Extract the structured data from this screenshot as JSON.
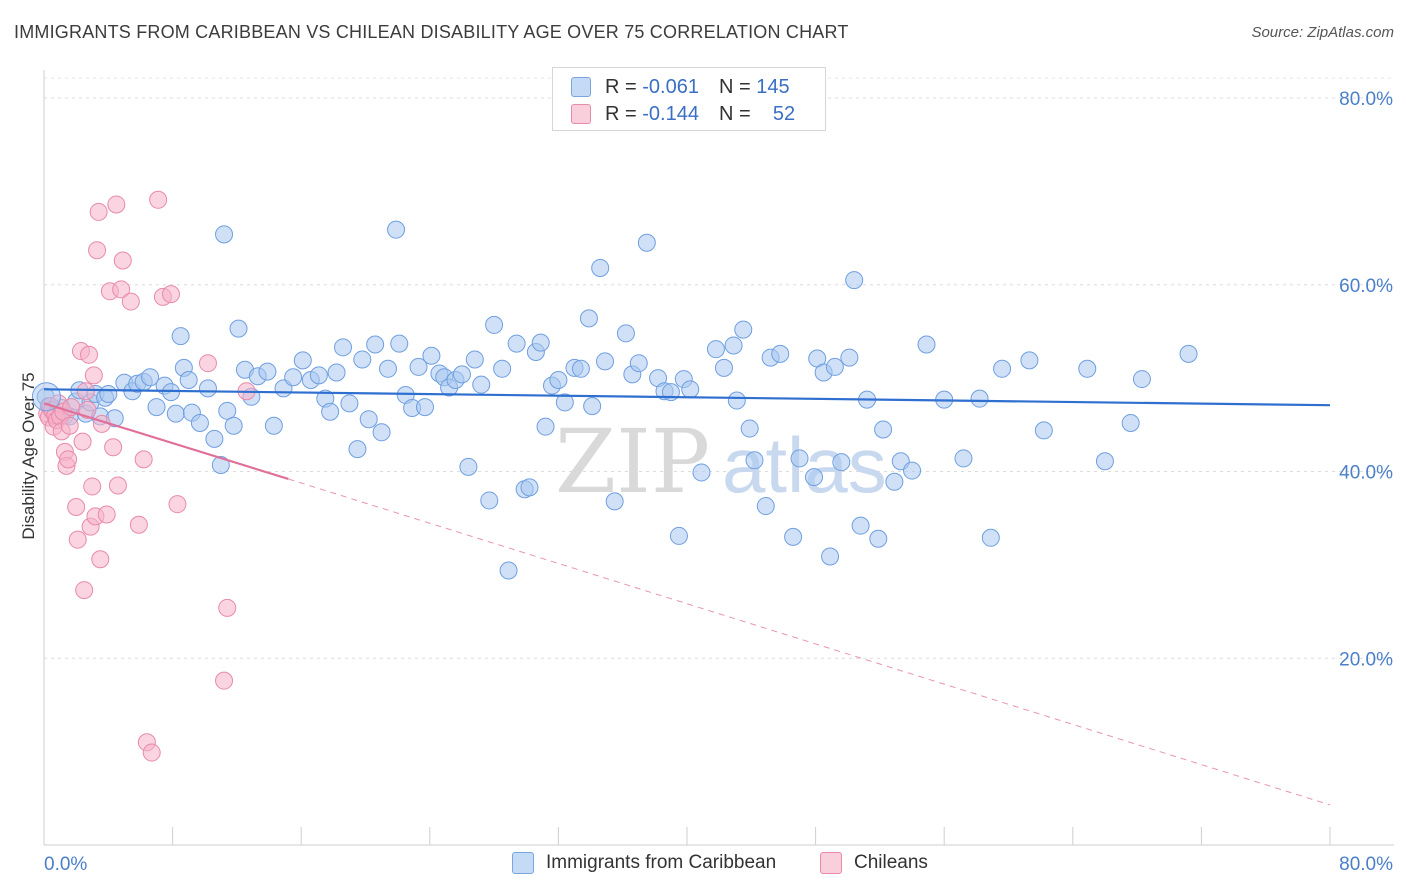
{
  "header": {
    "title": "IMMIGRANTS FROM CARIBBEAN VS CHILEAN DISABILITY AGE OVER 75 CORRELATION CHART",
    "source": "Source: ZipAtlas.com"
  },
  "legend": {
    "rows": [
      {
        "r_label": "R =",
        "r_value": "-0.061",
        "n_label": "N =",
        "n_value": "145",
        "color": "#a9c8f0"
      },
      {
        "r_label": "R =",
        "r_value": "-0.144",
        "n_label": "N =",
        "n_value": "52",
        "color": "#f5b3c8"
      }
    ]
  },
  "bottom_legend": {
    "items": [
      {
        "label": "Immigrants from Caribbean",
        "color": "#a9c8f0"
      },
      {
        "label": "Chileans",
        "color": "#f5b3c8"
      }
    ]
  },
  "watermark": {
    "zip": "ZIP",
    "atlas": "atlas"
  },
  "chart_data": {
    "type": "scatter",
    "title": "IMMIGRANTS FROM CARIBBEAN VS CHILEAN DISABILITY AGE OVER 75 CORRELATION CHART",
    "xlabel": "",
    "ylabel": "Disability Age Over 75",
    "xlim": [
      0,
      80
    ],
    "ylim": [
      0,
      83
    ],
    "x_tick_labels": [
      "0.0%",
      "80.0%"
    ],
    "y_ticks": [
      20,
      40,
      60,
      80
    ],
    "y_tick_labels": [
      "20.0%",
      "40.0%",
      "60.0%",
      "80.0%"
    ],
    "grid": "horizontal dashed",
    "legend_position": "top-center",
    "series": [
      {
        "name": "Immigrants from Caribbean",
        "color": "#a9c8f0",
        "stroke": "#6f9fe0",
        "trend": {
          "x": [
            0,
            80
          ],
          "y": [
            48.8,
            47.1
          ],
          "color": "#2f6fd0"
        },
        "points": [
          [
            0.1,
            48.0
          ],
          [
            0.3,
            47.0
          ],
          [
            0.5,
            46.5
          ],
          [
            0.8,
            46.2
          ],
          [
            1.1,
            46.8
          ],
          [
            1.3,
            46.0
          ],
          [
            1.6,
            45.9
          ],
          [
            2.0,
            47.5
          ],
          [
            2.2,
            48.7
          ],
          [
            2.6,
            46.2
          ],
          [
            2.9,
            47.4
          ],
          [
            3.2,
            48.3
          ],
          [
            3.5,
            45.9
          ],
          [
            3.8,
            47.9
          ],
          [
            4.0,
            48.3
          ],
          [
            4.4,
            45.7
          ],
          [
            5.0,
            49.5
          ],
          [
            5.5,
            48.6
          ],
          [
            5.8,
            49.4
          ],
          [
            6.2,
            49.6
          ],
          [
            6.6,
            50.1
          ],
          [
            7.0,
            46.9
          ],
          [
            7.5,
            49.2
          ],
          [
            7.9,
            48.5
          ],
          [
            8.2,
            46.2
          ],
          [
            8.5,
            54.5
          ],
          [
            8.7,
            51.1
          ],
          [
            9.0,
            49.8
          ],
          [
            9.2,
            46.3
          ],
          [
            9.7,
            45.2
          ],
          [
            10.2,
            48.9
          ],
          [
            10.6,
            43.5
          ],
          [
            11.0,
            40.7
          ],
          [
            11.2,
            65.4
          ],
          [
            11.4,
            46.5
          ],
          [
            11.8,
            44.9
          ],
          [
            12.1,
            55.3
          ],
          [
            12.5,
            50.9
          ],
          [
            12.9,
            48.0
          ],
          [
            13.3,
            50.2
          ],
          [
            13.9,
            50.7
          ],
          [
            14.3,
            44.9
          ],
          [
            14.9,
            48.9
          ],
          [
            15.5,
            50.1
          ],
          [
            16.1,
            51.9
          ],
          [
            16.6,
            49.8
          ],
          [
            17.1,
            50.3
          ],
          [
            17.5,
            47.8
          ],
          [
            17.8,
            46.4
          ],
          [
            18.2,
            50.6
          ],
          [
            18.6,
            53.3
          ],
          [
            19.0,
            47.3
          ],
          [
            19.5,
            42.4
          ],
          [
            19.8,
            52.0
          ],
          [
            20.2,
            45.6
          ],
          [
            20.6,
            53.6
          ],
          [
            21.0,
            44.2
          ],
          [
            21.4,
            51.0
          ],
          [
            21.9,
            65.9
          ],
          [
            22.1,
            53.7
          ],
          [
            22.5,
            48.2
          ],
          [
            22.9,
            46.8
          ],
          [
            23.3,
            51.2
          ],
          [
            23.7,
            46.9
          ],
          [
            24.1,
            52.4
          ],
          [
            24.6,
            50.5
          ],
          [
            24.9,
            50.1
          ],
          [
            25.2,
            49.0
          ],
          [
            25.6,
            49.8
          ],
          [
            26.0,
            50.4
          ],
          [
            26.4,
            40.5
          ],
          [
            26.8,
            52.0
          ],
          [
            27.2,
            49.3
          ],
          [
            27.7,
            36.9
          ],
          [
            28.0,
            55.7
          ],
          [
            28.5,
            51.0
          ],
          [
            28.9,
            29.4
          ],
          [
            29.4,
            53.7
          ],
          [
            29.9,
            38.1
          ],
          [
            30.2,
            38.3
          ],
          [
            30.6,
            52.8
          ],
          [
            30.9,
            53.8
          ],
          [
            31.2,
            44.8
          ],
          [
            31.6,
            49.2
          ],
          [
            32.0,
            49.8
          ],
          [
            32.4,
            47.4
          ],
          [
            33.0,
            51.1
          ],
          [
            33.4,
            51.0
          ],
          [
            33.9,
            56.4
          ],
          [
            34.1,
            47.0
          ],
          [
            34.6,
            61.8
          ],
          [
            34.9,
            51.8
          ],
          [
            35.5,
            36.8
          ],
          [
            36.2,
            54.8
          ],
          [
            36.6,
            50.4
          ],
          [
            37.0,
            51.6
          ],
          [
            37.5,
            64.5
          ],
          [
            38.2,
            50.0
          ],
          [
            38.6,
            48.6
          ],
          [
            39.0,
            48.5
          ],
          [
            39.5,
            33.1
          ],
          [
            39.8,
            49.9
          ],
          [
            40.2,
            48.8
          ],
          [
            40.9,
            39.9
          ],
          [
            41.8,
            53.1
          ],
          [
            42.3,
            51.1
          ],
          [
            42.9,
            53.5
          ],
          [
            43.1,
            47.6
          ],
          [
            43.5,
            55.2
          ],
          [
            43.9,
            44.6
          ],
          [
            44.2,
            41.2
          ],
          [
            44.9,
            36.3
          ],
          [
            45.2,
            52.2
          ],
          [
            45.8,
            52.6
          ],
          [
            46.6,
            33.0
          ],
          [
            47.0,
            41.4
          ],
          [
            47.9,
            39.4
          ],
          [
            48.1,
            52.1
          ],
          [
            48.5,
            50.6
          ],
          [
            48.9,
            30.9
          ],
          [
            49.2,
            51.2
          ],
          [
            49.6,
            41.0
          ],
          [
            50.1,
            52.2
          ],
          [
            50.4,
            60.5
          ],
          [
            50.8,
            34.2
          ],
          [
            51.2,
            47.7
          ],
          [
            51.9,
            32.8
          ],
          [
            52.2,
            44.5
          ],
          [
            52.9,
            38.9
          ],
          [
            53.3,
            41.1
          ],
          [
            54.0,
            40.1
          ],
          [
            54.9,
            53.6
          ],
          [
            56.0,
            47.7
          ],
          [
            57.2,
            41.4
          ],
          [
            58.2,
            47.8
          ],
          [
            58.9,
            32.9
          ],
          [
            59.6,
            51.0
          ],
          [
            61.3,
            51.9
          ],
          [
            62.2,
            44.4
          ],
          [
            64.9,
            51.0
          ],
          [
            66.0,
            41.1
          ],
          [
            68.3,
            49.9
          ],
          [
            67.6,
            45.2
          ],
          [
            71.2,
            52.6
          ]
        ]
      },
      {
        "name": "Chileans",
        "color": "#f5b3c8",
        "stroke": "#e88aab",
        "trend": {
          "x": [
            0,
            15.2
          ],
          "y": [
            47.3,
            39.2
          ],
          "color": "#e0709a",
          "extrapolated_to": [
            80,
            4.3
          ]
        },
        "points": [
          [
            0.2,
            46.2
          ],
          [
            0.3,
            45.8
          ],
          [
            0.4,
            47.0
          ],
          [
            0.5,
            46.6
          ],
          [
            0.6,
            44.8
          ],
          [
            0.7,
            46.0
          ],
          [
            0.8,
            45.5
          ],
          [
            0.9,
            47.3
          ],
          [
            1.0,
            45.9
          ],
          [
            1.1,
            44.3
          ],
          [
            1.2,
            46.4
          ],
          [
            1.3,
            42.1
          ],
          [
            1.4,
            40.6
          ],
          [
            1.5,
            41.3
          ],
          [
            1.6,
            44.9
          ],
          [
            1.7,
            46.9
          ],
          [
            2.0,
            36.2
          ],
          [
            2.1,
            32.7
          ],
          [
            2.3,
            52.9
          ],
          [
            2.4,
            43.2
          ],
          [
            2.5,
            27.3
          ],
          [
            2.6,
            48.6
          ],
          [
            2.7,
            46.6
          ],
          [
            2.8,
            52.5
          ],
          [
            2.9,
            34.1
          ],
          [
            3.0,
            38.4
          ],
          [
            3.1,
            50.3
          ],
          [
            3.2,
            35.2
          ],
          [
            3.3,
            63.7
          ],
          [
            3.4,
            67.8
          ],
          [
            3.5,
            30.6
          ],
          [
            3.6,
            45.1
          ],
          [
            3.9,
            35.4
          ],
          [
            4.1,
            59.3
          ],
          [
            4.3,
            42.6
          ],
          [
            4.5,
            68.6
          ],
          [
            4.6,
            38.5
          ],
          [
            4.8,
            59.5
          ],
          [
            4.9,
            62.6
          ],
          [
            5.4,
            58.2
          ],
          [
            5.9,
            34.3
          ],
          [
            6.2,
            41.3
          ],
          [
            6.4,
            11.0
          ],
          [
            6.7,
            9.9
          ],
          [
            7.1,
            69.1
          ],
          [
            7.4,
            58.7
          ],
          [
            7.9,
            59.0
          ],
          [
            8.3,
            36.5
          ],
          [
            10.2,
            51.6
          ],
          [
            11.2,
            17.6
          ],
          [
            11.4,
            25.4
          ],
          [
            12.6,
            48.6
          ]
        ]
      }
    ]
  }
}
